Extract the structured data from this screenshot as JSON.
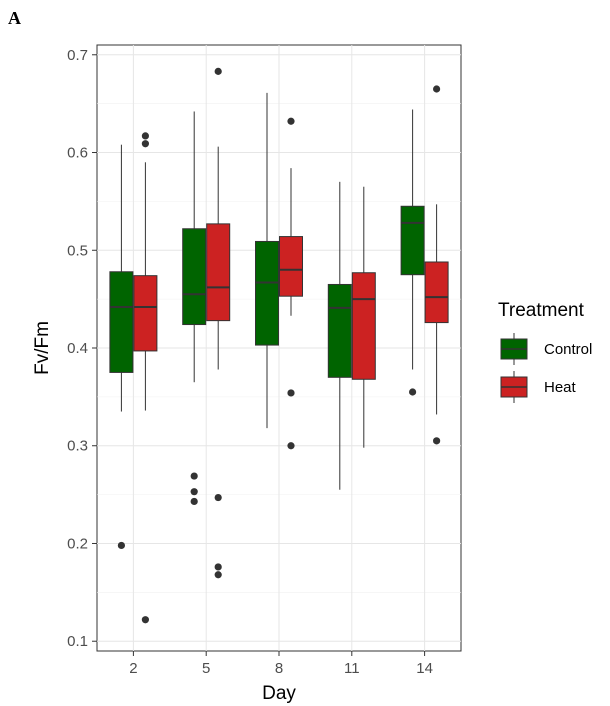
{
  "panel_label": "A",
  "chart_data": {
    "type": "boxplot",
    "xlabel": "Day",
    "ylabel": "Fv/Fm",
    "categories": [
      "2",
      "5",
      "8",
      "11",
      "14"
    ],
    "ylim": [
      0.09,
      0.71
    ],
    "yticks": [
      "0.1",
      "0.2",
      "0.3",
      "0.4",
      "0.5",
      "0.6",
      "0.7"
    ],
    "grid": true,
    "legend": {
      "title": "Treatment",
      "position": "right"
    },
    "series": [
      {
        "name": "Control",
        "color": "#006400",
        "boxes": [
          {
            "day": "2",
            "whisker_low": 0.335,
            "q1": 0.375,
            "median": 0.442,
            "q3": 0.478,
            "whisker_high": 0.608,
            "outliers": [
              0.198
            ]
          },
          {
            "day": "5",
            "whisker_low": 0.365,
            "q1": 0.424,
            "median": 0.455,
            "q3": 0.522,
            "whisker_high": 0.642,
            "outliers": [
              0.269,
              0.253,
              0.243
            ]
          },
          {
            "day": "8",
            "whisker_low": 0.318,
            "q1": 0.403,
            "median": 0.467,
            "q3": 0.509,
            "whisker_high": 0.661,
            "outliers": []
          },
          {
            "day": "11",
            "whisker_low": 0.255,
            "q1": 0.37,
            "median": 0.441,
            "q3": 0.465,
            "whisker_high": 0.57,
            "outliers": []
          },
          {
            "day": "14",
            "whisker_low": 0.378,
            "q1": 0.475,
            "median": 0.528,
            "q3": 0.545,
            "whisker_high": 0.644,
            "outliers": [
              0.355
            ]
          }
        ]
      },
      {
        "name": "Heat",
        "color": "#cc2222",
        "boxes": [
          {
            "day": "2",
            "whisker_low": 0.336,
            "q1": 0.397,
            "median": 0.442,
            "q3": 0.474,
            "whisker_high": 0.59,
            "outliers": [
              0.617,
              0.609,
              0.122
            ]
          },
          {
            "day": "5",
            "whisker_low": 0.378,
            "q1": 0.428,
            "median": 0.462,
            "q3": 0.527,
            "whisker_high": 0.606,
            "outliers": [
              0.683,
              0.247,
              0.176,
              0.168
            ]
          },
          {
            "day": "8",
            "whisker_low": 0.433,
            "q1": 0.453,
            "median": 0.48,
            "q3": 0.514,
            "whisker_high": 0.584,
            "outliers": [
              0.632,
              0.354,
              0.3
            ]
          },
          {
            "day": "11",
            "whisker_low": 0.298,
            "q1": 0.368,
            "median": 0.45,
            "q3": 0.477,
            "whisker_high": 0.565,
            "outliers": []
          },
          {
            "day": "14",
            "whisker_low": 0.332,
            "q1": 0.426,
            "median": 0.452,
            "q3": 0.488,
            "whisker_high": 0.547,
            "outliers": [
              0.665,
              0.305
            ]
          }
        ]
      }
    ]
  }
}
